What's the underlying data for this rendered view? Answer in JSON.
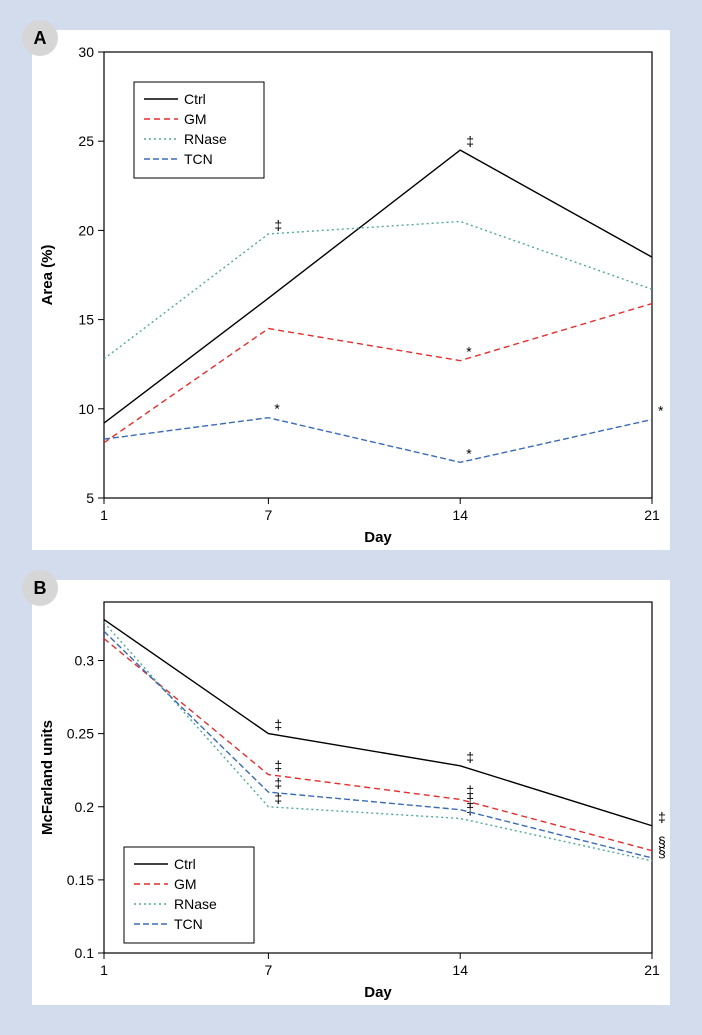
{
  "background_color": "#d3dced",
  "panel_bg": "#ffffff",
  "panels": {
    "A": {
      "label": "A",
      "xlabel": "Day",
      "ylabel": "Area (%)",
      "xlim": [
        1,
        21
      ],
      "xticks": [
        1,
        7,
        14,
        21
      ],
      "ylim": [
        5,
        30
      ],
      "yticks": [
        5,
        10,
        15,
        20,
        25,
        30
      ],
      "legend_pos": "top-left",
      "axis_color": "#000000",
      "line_width": 1.4,
      "series": [
        {
          "name": "Ctrl",
          "color": "#000000",
          "dash": "",
          "points": [
            [
              1,
              9.2
            ],
            [
              7,
              16.2
            ],
            [
              14,
              24.5
            ],
            [
              21,
              18.5
            ]
          ],
          "markers": [
            {
              "x": 14,
              "y": 24.5,
              "sym": "‡"
            }
          ]
        },
        {
          "name": "GM",
          "color": "#e22f2d",
          "dash": "6 4",
          "points": [
            [
              1,
              8.1
            ],
            [
              7,
              14.5
            ],
            [
              14,
              12.7
            ],
            [
              21,
              15.9
            ]
          ],
          "markers": [
            {
              "x": 14,
              "y": 12.7,
              "sym": "*"
            }
          ]
        },
        {
          "name": "RNase",
          "color": "#4fa89b",
          "dash": "2 3",
          "points": [
            [
              1,
              12.8
            ],
            [
              7,
              19.8
            ],
            [
              14,
              20.5
            ],
            [
              21,
              16.7
            ]
          ],
          "markers": [
            {
              "x": 7,
              "y": 19.8,
              "sym": "‡"
            }
          ]
        },
        {
          "name": "TCN",
          "color": "#3b6bb5",
          "dash": "6 3",
          "points": [
            [
              1,
              8.3
            ],
            [
              7,
              9.5
            ],
            [
              14,
              7.0
            ],
            [
              21,
              9.4
            ]
          ],
          "markers": [
            {
              "x": 7,
              "y": 9.5,
              "sym": "*"
            },
            {
              "x": 14,
              "y": 7.0,
              "sym": "*"
            },
            {
              "x": 21,
              "y": 9.4,
              "sym": "*"
            }
          ]
        }
      ]
    },
    "B": {
      "label": "B",
      "xlabel": "Day",
      "ylabel": "McFarland units",
      "xlim": [
        1,
        21
      ],
      "xticks": [
        1,
        7,
        14,
        21
      ],
      "ylim": [
        0.1,
        0.34
      ],
      "yticks": [
        0.1,
        0.15,
        0.2,
        0.25,
        0.3
      ],
      "legend_pos": "bottom-left",
      "axis_color": "#000000",
      "line_width": 1.4,
      "series": [
        {
          "name": "Ctrl",
          "color": "#000000",
          "dash": "",
          "points": [
            [
              1,
              0.328
            ],
            [
              7,
              0.25
            ],
            [
              14,
              0.228
            ],
            [
              21,
              0.187
            ]
          ],
          "markers": [
            {
              "x": 7,
              "y": 0.25,
              "sym": "‡"
            },
            {
              "x": 14,
              "y": 0.228,
              "sym": "‡"
            },
            {
              "x": 21,
              "y": 0.187,
              "sym": "‡"
            }
          ]
        },
        {
          "name": "GM",
          "color": "#e22f2d",
          "dash": "6 4",
          "points": [
            [
              1,
              0.315
            ],
            [
              7,
              0.222
            ],
            [
              14,
              0.205
            ],
            [
              21,
              0.17
            ]
          ],
          "markers": [
            {
              "x": 7,
              "y": 0.222,
              "sym": "‡"
            },
            {
              "x": 14,
              "y": 0.205,
              "sym": "‡"
            },
            {
              "x": 21,
              "y": 0.17,
              "sym": "§"
            }
          ]
        },
        {
          "name": "RNase",
          "color": "#4fa89b",
          "dash": "2 3",
          "points": [
            [
              1,
              0.326
            ],
            [
              7,
              0.2
            ],
            [
              14,
              0.192
            ],
            [
              21,
              0.163
            ]
          ],
          "markers": [
            {
              "x": 7,
              "y": 0.2,
              "sym": "‡"
            },
            {
              "x": 14,
              "y": 0.192,
              "sym": "‡"
            },
            {
              "x": 21,
              "y": 0.163,
              "sym": "§"
            }
          ]
        },
        {
          "name": "TCN",
          "color": "#3b6bb5",
          "dash": "6 3",
          "points": [
            [
              1,
              0.32
            ],
            [
              7,
              0.21
            ],
            [
              14,
              0.198
            ],
            [
              21,
              0.165
            ]
          ],
          "markers": [
            {
              "x": 7,
              "y": 0.21,
              "sym": "‡"
            },
            {
              "x": 14,
              "y": 0.198,
              "sym": "‡"
            }
          ]
        }
      ]
    }
  }
}
